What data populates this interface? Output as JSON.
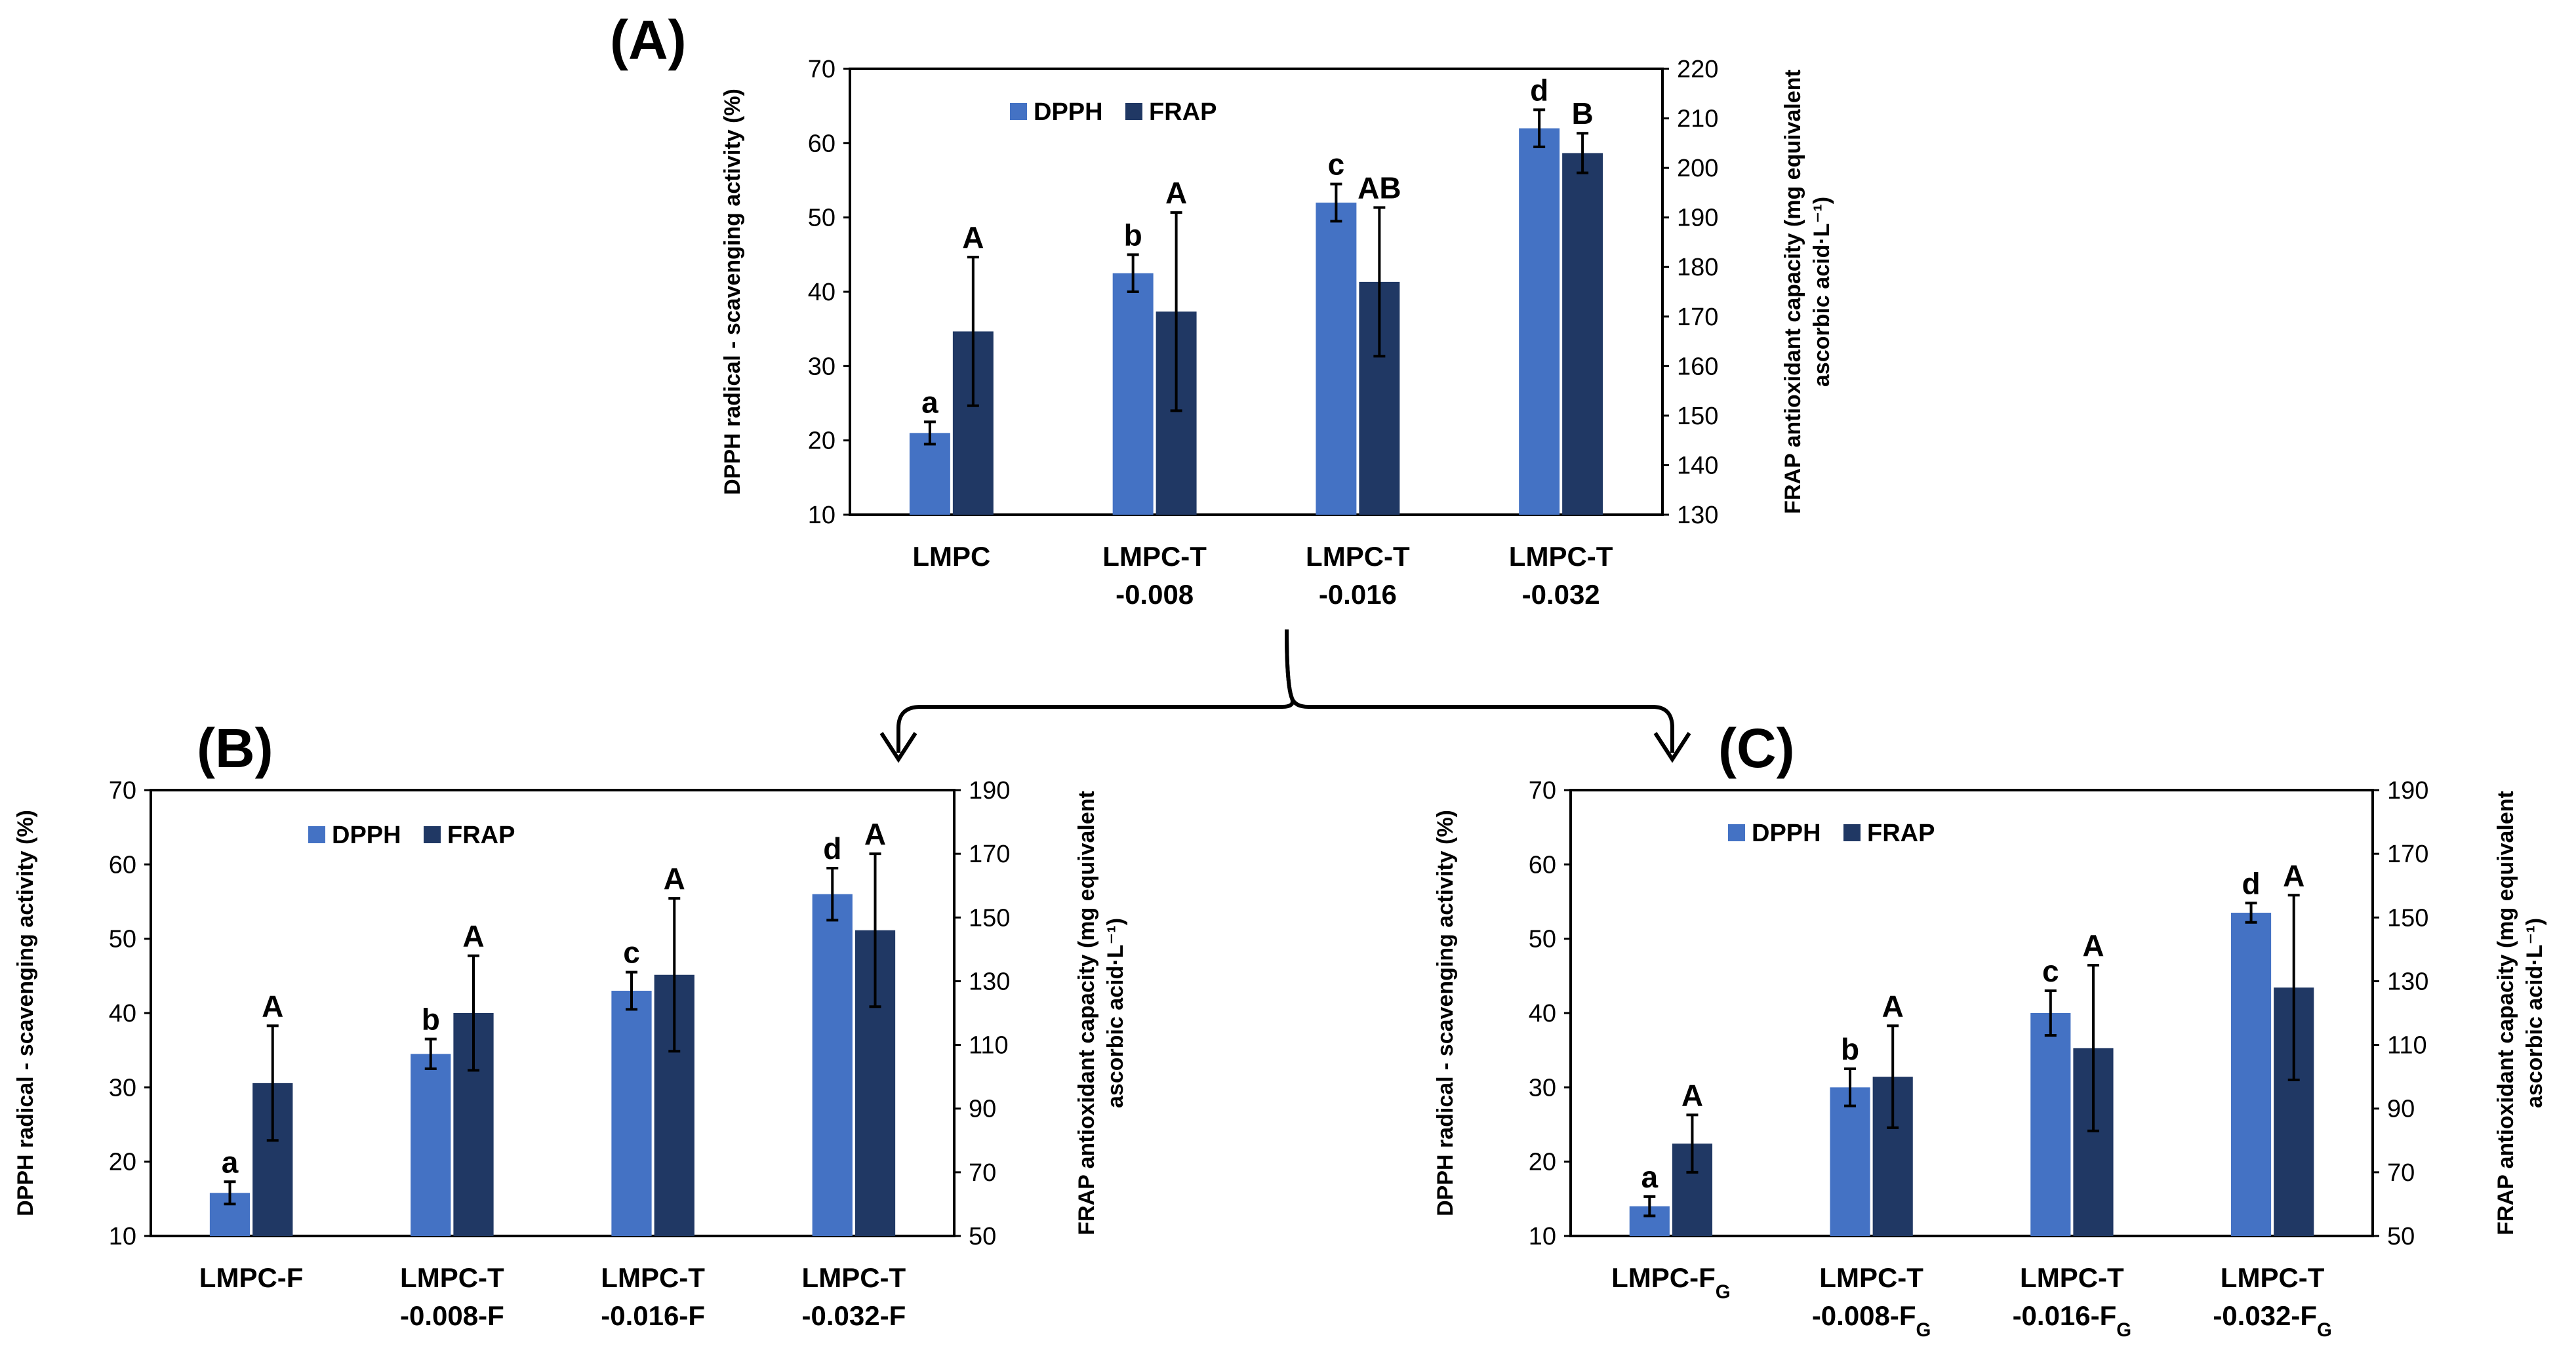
{
  "colors": {
    "dpph": "#4472C4",
    "frap": "#203864",
    "axis": "#000000"
  },
  "connector_icon": "branching-arrows-icon",
  "chart_data": [
    {
      "id": "A",
      "type": "bar",
      "panel_label": "(A)",
      "categories": [
        [
          "LMPC"
        ],
        [
          "LMPC-T",
          "-0.008"
        ],
        [
          "LMPC-T",
          "-0.016"
        ],
        [
          "LMPC-T",
          "-0.032"
        ]
      ],
      "series": [
        {
          "name": "DPPH",
          "axis": "left",
          "values": [
            21,
            42.5,
            52,
            62
          ],
          "errors": [
            1.5,
            2.5,
            2.5,
            2.5
          ],
          "letters": [
            "a",
            "b",
            "c",
            "d"
          ]
        },
        {
          "name": "FRAP",
          "axis": "right",
          "values": [
            167,
            171,
            177,
            203
          ],
          "errors": [
            15,
            20,
            15,
            4
          ],
          "letters": [
            "A",
            "A",
            "AB",
            "B"
          ]
        }
      ],
      "ylabel": "DPPH radical - scavenging activity (%)",
      "y2label": [
        "FRAP antioxidant capacity (mg equivalent",
        "ascorbic acid·L⁻¹)"
      ],
      "ylim": [
        10,
        70
      ],
      "yticks": [
        10,
        20,
        30,
        40,
        50,
        60,
        70
      ],
      "y2lim": [
        130,
        220
      ],
      "y2ticks": [
        130,
        140,
        150,
        160,
        170,
        180,
        190,
        200,
        210,
        220
      ],
      "legend": "top"
    },
    {
      "id": "B",
      "type": "bar",
      "panel_label": "(B)",
      "categories": [
        [
          "LMPC-F"
        ],
        [
          "LMPC-T",
          "-0.008-F"
        ],
        [
          "LMPC-T",
          "-0.016-F"
        ],
        [
          "LMPC-T",
          "-0.032-F"
        ]
      ],
      "series": [
        {
          "name": "DPPH",
          "axis": "left",
          "values": [
            15.8,
            34.5,
            43,
            56
          ],
          "errors": [
            1.5,
            2,
            2.5,
            3.5
          ],
          "letters": [
            "a",
            "b",
            "c",
            "d"
          ]
        },
        {
          "name": "FRAP",
          "axis": "right",
          "values": [
            98,
            120,
            132,
            146
          ],
          "errors": [
            18,
            18,
            24,
            24
          ],
          "letters": [
            "A",
            "A",
            "A",
            "A"
          ]
        }
      ],
      "ylabel": "DPPH radical - scavenging activity (%)",
      "y2label": [
        "FRAP antioxidant capacity (mg equivalent",
        "ascorbic acid·L⁻¹)"
      ],
      "ylim": [
        10,
        70
      ],
      "yticks": [
        10,
        20,
        30,
        40,
        50,
        60,
        70
      ],
      "y2lim": [
        50,
        190
      ],
      "y2ticks": [
        50,
        70,
        90,
        110,
        130,
        150,
        170,
        190
      ],
      "legend": "top"
    },
    {
      "id": "C",
      "type": "bar",
      "panel_label": "(C)",
      "categories": [
        [
          "LMPC-F_G"
        ],
        [
          "LMPC-T",
          "-0.008-F_G"
        ],
        [
          "LMPC-T",
          "-0.016-F_G"
        ],
        [
          "LMPC-T",
          "-0.032-F_G"
        ]
      ],
      "series": [
        {
          "name": "DPPH",
          "axis": "left",
          "values": [
            14,
            30,
            40,
            53.5
          ],
          "errors": [
            1.3,
            2.5,
            3,
            1.3
          ],
          "letters": [
            "a",
            "b",
            "c",
            "d"
          ]
        },
        {
          "name": "FRAP",
          "axis": "right",
          "values": [
            79,
            100,
            109,
            128
          ],
          "errors": [
            9,
            16,
            26,
            29
          ],
          "letters": [
            "A",
            "A",
            "A",
            "A"
          ]
        }
      ],
      "ylabel": "DPPH radical - scavenging activity (%)",
      "y2label": [
        "FRAP antioxidant capacity (mg equivalent",
        "ascorbic acid·L⁻¹)"
      ],
      "ylim": [
        10,
        70
      ],
      "yticks": [
        10,
        20,
        30,
        40,
        50,
        60,
        70
      ],
      "y2lim": [
        50,
        190
      ],
      "y2ticks": [
        50,
        70,
        90,
        110,
        130,
        150,
        170,
        190
      ],
      "legend": "top"
    }
  ]
}
